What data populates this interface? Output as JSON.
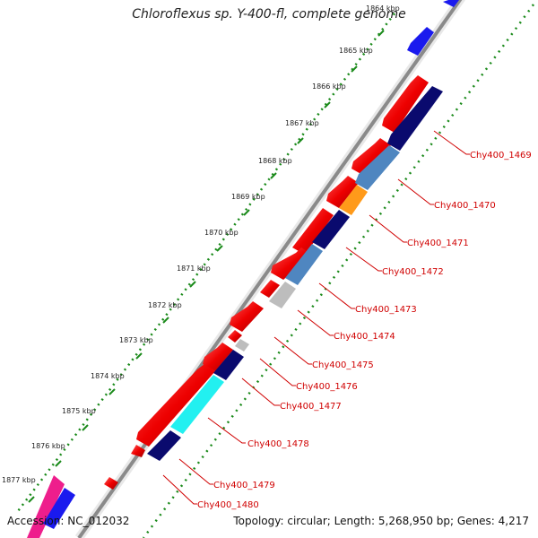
{
  "title": "Chloroflexus sp. Y-400-fl, complete genome",
  "accession": "Accession: NC_012032",
  "summary": "Topology: circular; Length: 5,268,950 bp; Genes: 4,217",
  "ticks": [
    {
      "label": "1864 kbp"
    },
    {
      "label": "1865 kbp"
    },
    {
      "label": "1866 kbp"
    },
    {
      "label": "1867 kbp"
    },
    {
      "label": "1868 kbp"
    },
    {
      "label": "1869 kbp"
    },
    {
      "label": "1870 kbp"
    },
    {
      "label": "1871 kbp"
    },
    {
      "label": "1872 kbp"
    },
    {
      "label": "1873 kbp"
    },
    {
      "label": "1874 kbp"
    },
    {
      "label": "1875 kbp"
    },
    {
      "label": "1876 kbp"
    },
    {
      "label": "1877 kbp"
    }
  ],
  "gene_labels": [
    "Chy400_1469",
    "Chy400_1470",
    "Chy400_1471",
    "Chy400_1472",
    "Chy400_1473",
    "Chy400_1474",
    "Chy400_1475",
    "Chy400_1476",
    "Chy400_1477",
    "Chy400_1478",
    "Chy400_1479",
    "Chy400_1480"
  ],
  "colors": {
    "forward_cds": "#ee0000",
    "reverse_cds_dark": "#0a0a6e",
    "reverse_cds_steel": "#4f86c0",
    "orange_cds": "#ff9a1a",
    "cyan_cds": "#22f0f0",
    "grey_cds": "#bdbdbd",
    "magenta_cds": "#ee1e8c",
    "blue_cds": "#1a1aee",
    "backbone": "#8a8a8a",
    "tick_dots": "#1a8a1a",
    "label_text": "#d00000"
  }
}
